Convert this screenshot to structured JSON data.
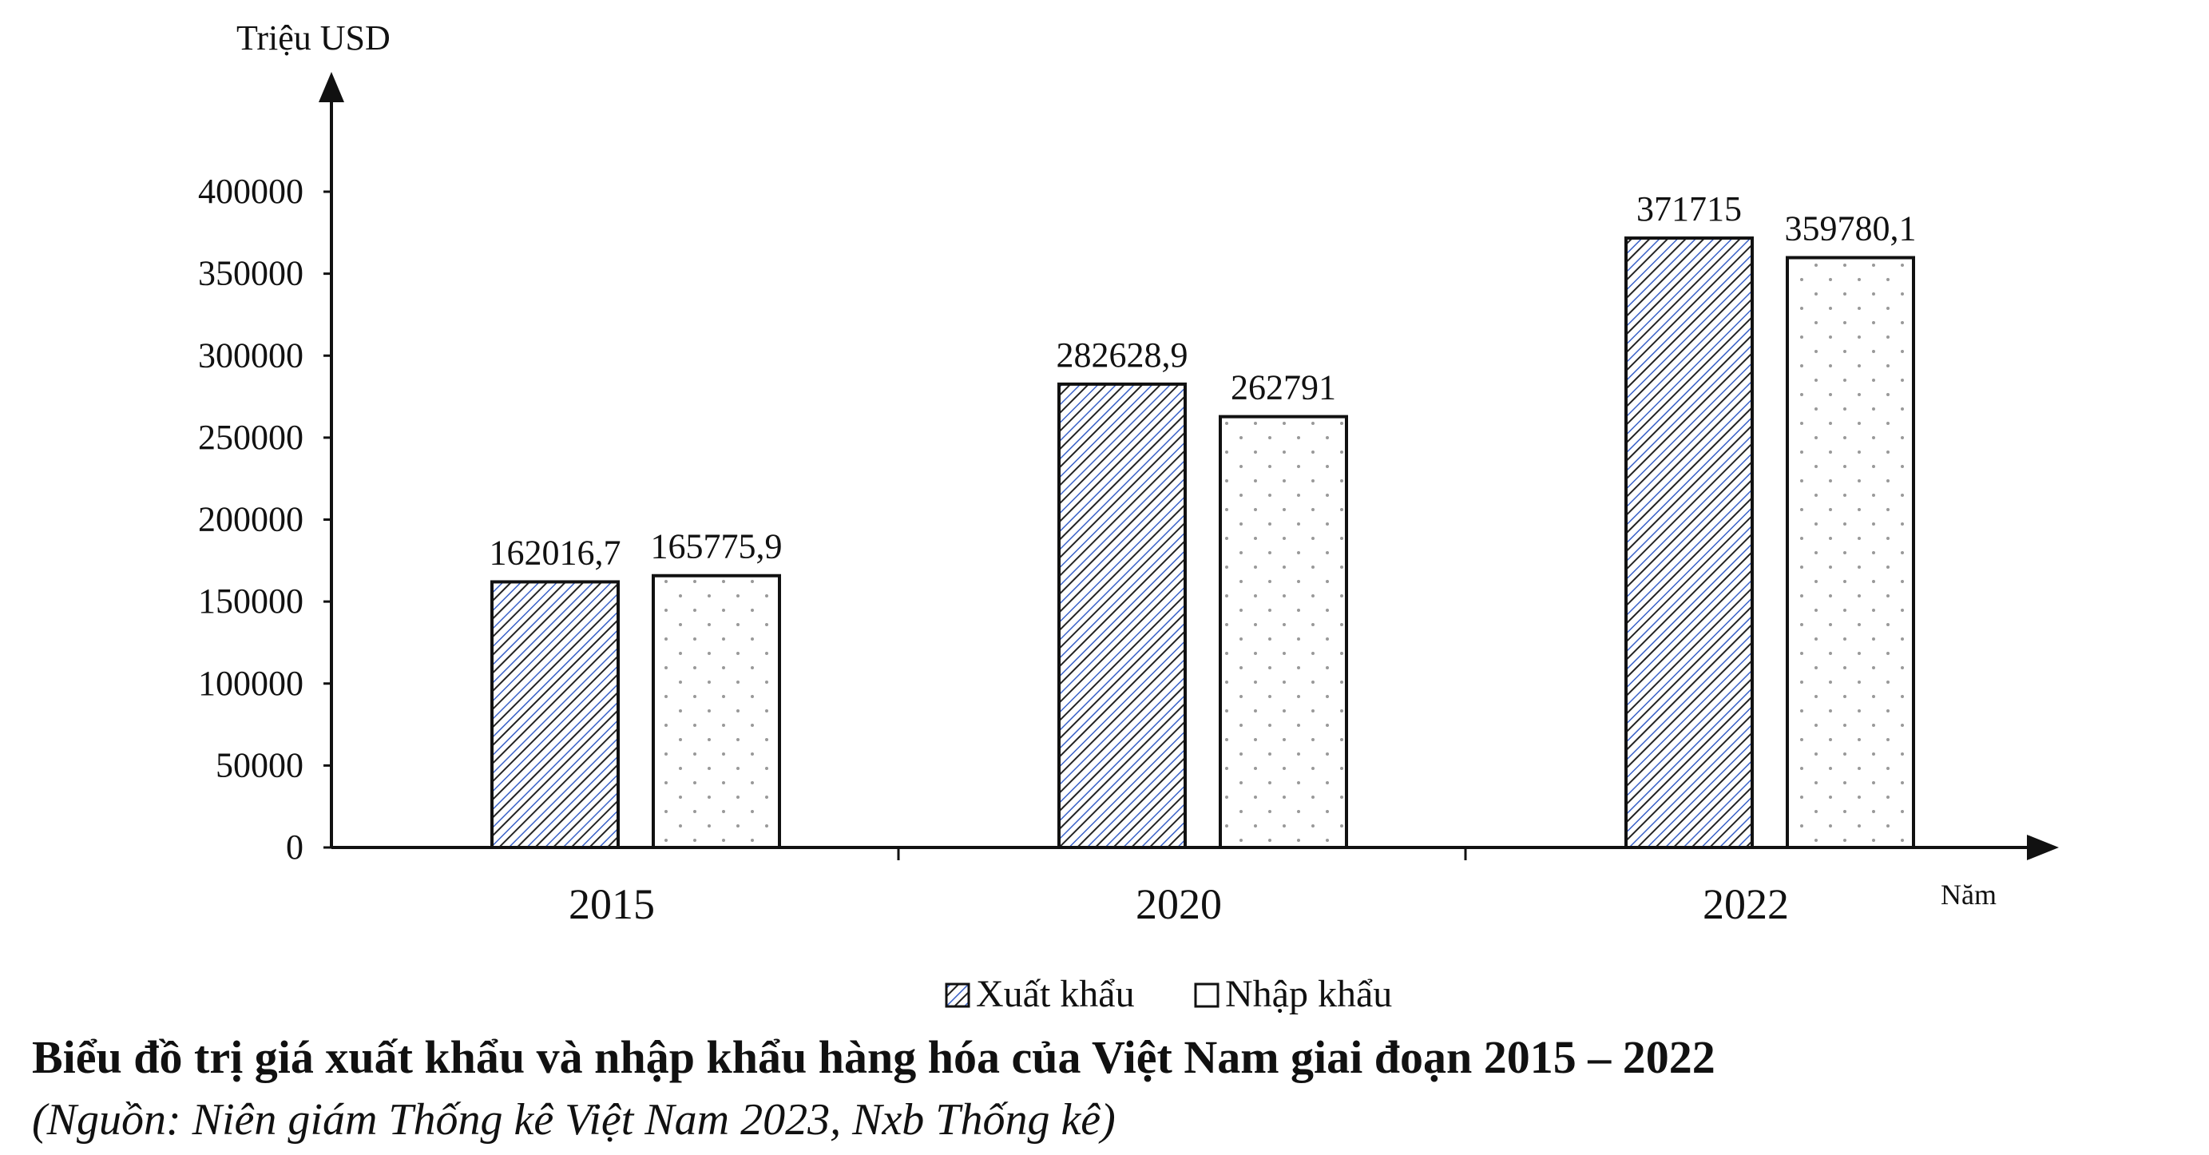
{
  "chart_data": {
    "type": "bar",
    "ylabel": "Triệu USD",
    "xlabel": "Năm",
    "categories": [
      "2015",
      "2020",
      "2022"
    ],
    "series": [
      {
        "name": "Xuất khẩu",
        "values": [
          162016.7,
          282628.9,
          371715
        ],
        "labels": [
          "162016,7",
          "282628,9",
          "371715"
        ],
        "pattern": "diagonal-hatch",
        "color": "#3a62c8"
      },
      {
        "name": "Nhập khẩu",
        "values": [
          165775.9,
          262791,
          359780.1
        ],
        "labels": [
          "165775,9",
          "262791",
          "359780,1"
        ],
        "pattern": "dots",
        "color": "#888888"
      }
    ],
    "ylim": [
      0,
      400000
    ],
    "yticks": [
      0,
      50000,
      100000,
      150000,
      200000,
      250000,
      300000,
      350000,
      400000
    ],
    "ytick_labels": [
      "0",
      "50000",
      "100000",
      "150000",
      "200000",
      "250000",
      "300000",
      "350000",
      "400000"
    ],
    "grid": false,
    "legend_position": "bottom-center"
  },
  "caption": {
    "title": "Biểu đồ trị giá xuất khẩu và nhập khẩu hàng hóa của Việt Nam giai đoạn 2015 – 2022",
    "source": "(Nguồn: Niên giám Thống kê Việt Nam 2023, Nxb Thống kê)"
  }
}
